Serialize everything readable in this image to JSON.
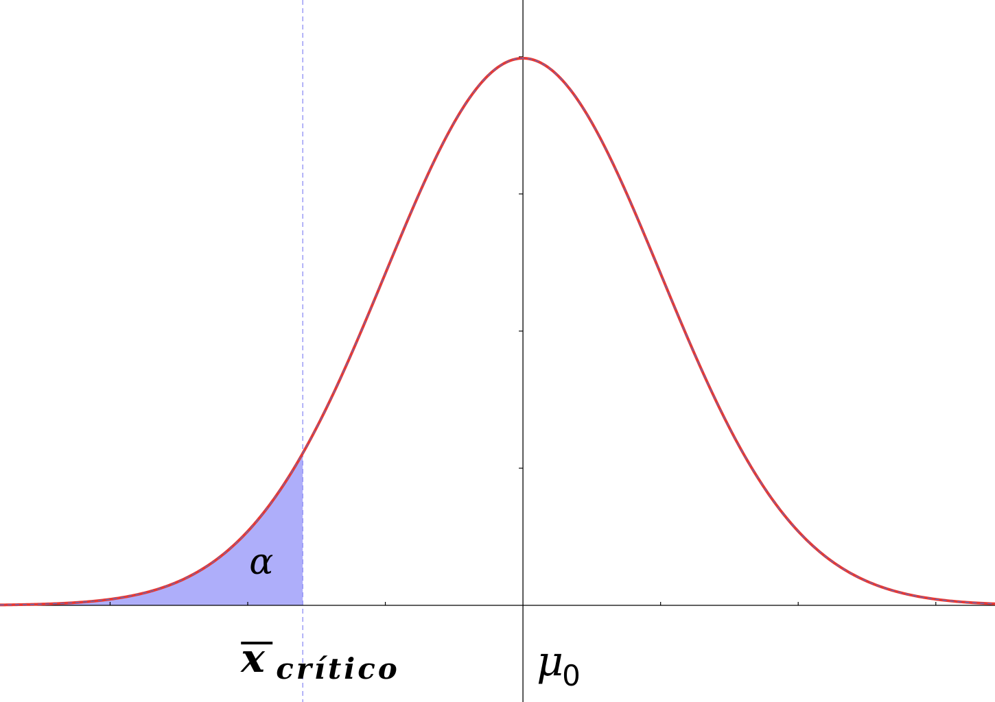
{
  "chart_data": {
    "type": "area",
    "distribution": "normal",
    "mean": 0,
    "sd": 1,
    "xlim": [
      -3.8,
      3.43
    ],
    "ylim": [
      0,
      0.44
    ],
    "critical_x": -1.6,
    "curve_color": "#e53935",
    "curve_overlay_color": "#5c6bc0",
    "shade_color": "#aeaefa",
    "critical_line_color": "#8c8cf5",
    "axis_color": "#000000",
    "xticks": [
      -3,
      -2,
      -1,
      0,
      1,
      2,
      3
    ],
    "yticks": [
      0.1,
      0.2,
      0.3,
      0.4
    ],
    "grid": false,
    "annotations": {
      "alpha": "α",
      "critical_label_main": "x",
      "critical_label_sub": "crítico",
      "mean_label_main": "μ",
      "mean_label_sub": "0"
    }
  }
}
